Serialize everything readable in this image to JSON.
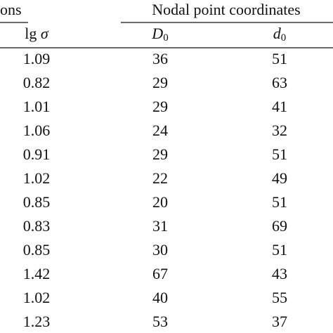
{
  "table": {
    "left_header": "ons",
    "group_header": "Nodal point coordinates",
    "sub_headers": [
      {
        "text": "lg",
        "symbol": "σ"
      },
      {
        "symbol": "D",
        "subscript": "0"
      },
      {
        "symbol": "d",
        "subscript": "0"
      }
    ],
    "rows": [
      [
        1.09,
        36,
        51
      ],
      [
        0.82,
        29,
        63
      ],
      [
        1.01,
        29,
        41
      ],
      [
        1.06,
        24,
        32
      ],
      [
        0.91,
        29,
        51
      ],
      [
        1.02,
        22,
        49
      ],
      [
        0.85,
        20,
        51
      ],
      [
        0.83,
        31,
        69
      ],
      [
        0.85,
        30,
        51
      ],
      [
        1.42,
        67,
        43
      ],
      [
        1.02,
        40,
        55
      ],
      [
        1.23,
        53,
        37
      ]
    ]
  }
}
